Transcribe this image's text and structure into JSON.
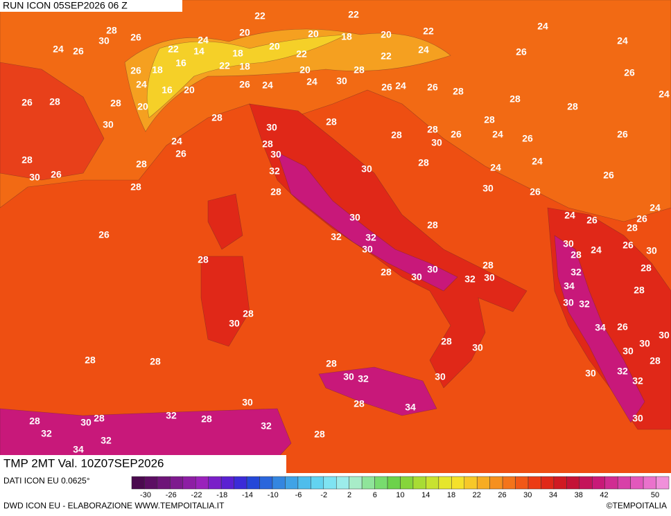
{
  "header": {
    "run": "RUN ICON 05SEP2026 06 Z"
  },
  "map": {
    "labels": [
      22,
      22,
      28,
      30,
      26,
      20,
      20,
      18,
      20,
      22,
      24,
      24,
      24,
      26,
      24,
      22,
      14,
      18,
      20,
      22,
      22,
      24,
      26,
      16,
      18,
      26,
      22,
      18,
      20,
      28,
      26,
      24,
      16,
      20,
      26,
      24,
      24,
      30,
      26,
      24,
      26,
      28,
      26,
      28,
      28,
      20,
      28,
      28,
      24,
      28,
      30,
      30,
      28,
      28,
      28,
      24,
      26,
      26,
      26,
      28,
      24,
      28,
      30,
      26,
      30,
      28,
      28,
      28,
      24,
      24,
      32,
      30,
      30,
      26,
      26,
      28,
      28,
      30,
      26,
      24,
      24,
      26,
      26,
      30,
      28,
      28,
      26,
      32,
      32,
      30,
      26,
      24,
      30,
      30,
      28,
      28,
      28,
      30,
      28,
      28,
      30,
      32,
      30,
      32,
      34,
      28,
      30,
      32,
      28,
      30,
      34,
      26,
      30,
      28,
      30,
      30,
      30,
      28,
      28,
      28,
      28,
      30,
      32,
      30,
      30,
      32,
      32,
      30,
      28,
      34,
      28,
      30,
      28,
      32,
      28,
      32,
      30,
      32,
      28,
      32,
      34
    ]
  },
  "footer": {
    "title": "TMP 2MT Val. 10Z07SEP2026",
    "source": "DATI ICON EU 0.0625°",
    "credit": "DWD ICON EU - ELABORAZIONE WWW.TEMPOITALIA.IT",
    "copyright": "©TEMPOITALIA"
  },
  "colorbar": {
    "ticks": [
      -30,
      -26,
      -22,
      -18,
      -14,
      -10,
      -6,
      -2,
      2,
      6,
      10,
      14,
      18,
      22,
      26,
      30,
      34,
      38,
      42,
      50
    ],
    "colors": [
      "#4b0a4f",
      "#5c0e63",
      "#6e1478",
      "#7e1a8e",
      "#8d1ea4",
      "#9a22bb",
      "#7a1fc8",
      "#5a20d2",
      "#3b2bd8",
      "#2447d8",
      "#2a66dc",
      "#3486e0",
      "#40a3e6",
      "#4fbdec",
      "#63d3f0",
      "#7fe3f2",
      "#9cecea",
      "#a8ecc8",
      "#8fe49a",
      "#78dc6e",
      "#6cd24a",
      "#86d53a",
      "#a8dc34",
      "#c8e230",
      "#e6e62c",
      "#f5e12a",
      "#f7c828",
      "#f7ac22",
      "#f6901e",
      "#f4741a",
      "#f25816",
      "#ec3c14",
      "#e02818",
      "#d01a22",
      "#c41236",
      "#c4145a",
      "#c81a78",
      "#d02c92",
      "#d840a8",
      "#e258bc",
      "#ea72cc",
      "#f090da"
    ]
  }
}
